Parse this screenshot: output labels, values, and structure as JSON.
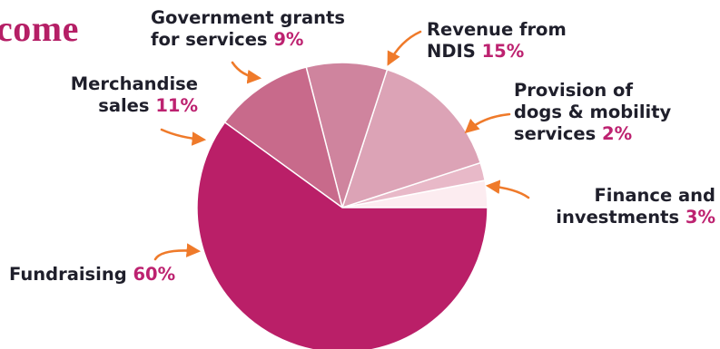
{
  "title": "come",
  "colors": {
    "pct_text": "#bd2270",
    "label_text": "#1f1f2b",
    "arrow": "#ef7a2a"
  },
  "chart_data": {
    "type": "pie",
    "slices": [
      {
        "line1": "Finance and",
        "line2": "investments",
        "pct_label": "3%",
        "value": 3,
        "color": "#fcecf0"
      },
      {
        "line1": "Provision of",
        "line2": "dogs & mobility",
        "line3": "services",
        "pct_label": "2%",
        "value": 2,
        "color": "#e8b9c8"
      },
      {
        "line1": "Revenue from",
        "line2": "NDIS",
        "pct_label": "15%",
        "value": 15,
        "color": "#dca3b6"
      },
      {
        "line1": "Government grants",
        "line2": "for services",
        "pct_label": "9%",
        "value": 9,
        "color": "#cf849e"
      },
      {
        "line1": "Merchandise",
        "line2": "sales",
        "pct_label": "11%",
        "value": 11,
        "color": "#c86a8b"
      },
      {
        "line1": "Fundraising",
        "pct_label": "60%",
        "value": 60,
        "color": "#ba1f68"
      }
    ]
  }
}
